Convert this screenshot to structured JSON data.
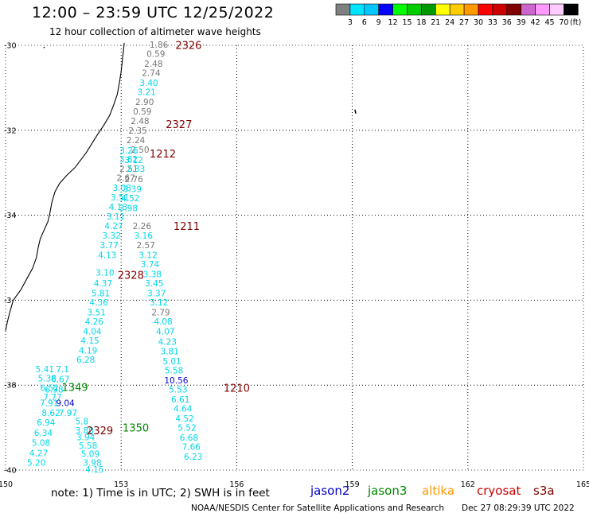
{
  "header": {
    "title": "12:00 – 23:59 UTC 12/25/2022",
    "subtitle": "12 hour collection of altimeter wave heights"
  },
  "colorbar": {
    "unit": "(ft)",
    "bins": [
      {
        "color": "#808080",
        "label": "3"
      },
      {
        "color": "#00e5ff",
        "label": "6"
      },
      {
        "color": "#00c8ff",
        "label": "9"
      },
      {
        "color": "#0000ff",
        "label": "12"
      },
      {
        "color": "#00ff00",
        "label": "15"
      },
      {
        "color": "#00cc00",
        "label": "18"
      },
      {
        "color": "#009a00",
        "label": "21"
      },
      {
        "color": "#ffff00",
        "label": "24"
      },
      {
        "color": "#ffcc00",
        "label": "27"
      },
      {
        "color": "#ff9900",
        "label": "30"
      },
      {
        "color": "#ff0000",
        "label": "33"
      },
      {
        "color": "#cc0000",
        "label": "36"
      },
      {
        "color": "#800000",
        "label": "39"
      },
      {
        "color": "#cc66cc",
        "label": "42"
      },
      {
        "color": "#ff99ff",
        "label": "45"
      },
      {
        "color": "#ffccff",
        "label": "70"
      },
      {
        "color": "#000000",
        "label": ""
      }
    ]
  },
  "axes": {
    "lon": [
      150,
      153,
      156,
      159,
      162,
      165
    ],
    "lat": [
      -30,
      -32,
      -34,
      -36,
      -38,
      -40
    ],
    "lat_labels": [
      "-30",
      "-32",
      "-34",
      "-3 ",
      "-38",
      "-40"
    ]
  },
  "colors": {
    "gray": "#777777",
    "cyan": "#00d8e8",
    "blue": "#0000cc",
    "green": "#008800",
    "pass": "#800000"
  },
  "passes": [
    {
      "label": "2326",
      "lon": 154.75,
      "lat": -29.99,
      "color": "pass"
    },
    {
      "label": "2327",
      "lon": 154.5,
      "lat": -31.85,
      "color": "pass"
    },
    {
      "label": "1212",
      "lon": 154.08,
      "lat": -32.55,
      "color": "pass"
    },
    {
      "label": "1211",
      "lon": 154.7,
      "lat": -34.25,
      "color": "pass"
    },
    {
      "label": "2328",
      "lon": 153.25,
      "lat": -35.4,
      "color": "pass"
    },
    {
      "label": "1210",
      "lon": 156.0,
      "lat": -38.06,
      "color": "pass"
    },
    {
      "label": "1349",
      "lon": 151.8,
      "lat": -38.04,
      "color": "green"
    },
    {
      "label": "1350",
      "lon": 153.38,
      "lat": -39.0,
      "color": "green"
    },
    {
      "label": "2329",
      "lon": 152.45,
      "lat": -39.06,
      "color": "pass"
    }
  ],
  "observations": [
    {
      "v": "1.86",
      "lon": 153.98,
      "lat": -29.98,
      "c": "gray"
    },
    {
      "v": "0.59",
      "lon": 153.9,
      "lat": -30.2,
      "c": "gray"
    },
    {
      "v": "2.48",
      "lon": 153.84,
      "lat": -30.43,
      "c": "gray"
    },
    {
      "v": "2.74",
      "lon": 153.78,
      "lat": -30.65,
      "c": "gray"
    },
    {
      "v": "3.40",
      "lon": 153.72,
      "lat": -30.88,
      "c": "cyan"
    },
    {
      "v": "3.21",
      "lon": 153.66,
      "lat": -31.1,
      "c": "cyan"
    },
    {
      "v": "2.90",
      "lon": 153.61,
      "lat": -31.33,
      "c": "gray"
    },
    {
      "v": "0.59",
      "lon": 153.55,
      "lat": -31.55,
      "c": "gray"
    },
    {
      "v": "2.48",
      "lon": 153.49,
      "lat": -31.78,
      "c": "gray"
    },
    {
      "v": "2.35",
      "lon": 153.43,
      "lat": -32.0,
      "c": "gray"
    },
    {
      "v": "2.24",
      "lon": 153.38,
      "lat": -32.23,
      "c": "gray"
    },
    {
      "v": "2.50",
      "lon": 153.49,
      "lat": -32.45,
      "c": "gray"
    },
    {
      "v": "3.26",
      "lon": 153.2,
      "lat": -32.47,
      "c": "cyan"
    },
    {
      "v": "3.82",
      "lon": 153.19,
      "lat": -32.68,
      "c": "cyan"
    },
    {
      "v": "3.12",
      "lon": 153.33,
      "lat": -32.7,
      "c": "cyan"
    },
    {
      "v": "2.51",
      "lon": 153.2,
      "lat": -32.9,
      "c": "gray"
    },
    {
      "v": "2.33",
      "lon": 153.38,
      "lat": -32.9,
      "c": "cyan"
    },
    {
      "v": "2.67",
      "lon": 153.12,
      "lat": -33.12,
      "c": "gray"
    },
    {
      "v": "2.76",
      "lon": 153.33,
      "lat": -33.15,
      "c": "gray"
    },
    {
      "v": "3.08",
      "lon": 153.02,
      "lat": -33.35,
      "c": "cyan"
    },
    {
      "v": "3.39",
      "lon": 153.29,
      "lat": -33.38,
      "c": "cyan"
    },
    {
      "v": "3.51",
      "lon": 152.97,
      "lat": -33.58,
      "c": "cyan"
    },
    {
      "v": "4.52",
      "lon": 153.24,
      "lat": -33.6,
      "c": "cyan"
    },
    {
      "v": "4.13",
      "lon": 152.92,
      "lat": -33.8,
      "c": "cyan"
    },
    {
      "v": "3.98",
      "lon": 153.19,
      "lat": -33.83,
      "c": "cyan"
    },
    {
      "v": "3.11",
      "lon": 152.86,
      "lat": -34.03,
      "c": "cyan"
    },
    {
      "v": "2.26",
      "lon": 153.54,
      "lat": -34.25,
      "c": "gray"
    },
    {
      "v": "4.27",
      "lon": 152.81,
      "lat": -34.25,
      "c": "cyan"
    },
    {
      "v": "3.16",
      "lon": 153.58,
      "lat": -34.48,
      "c": "cyan"
    },
    {
      "v": "3.32",
      "lon": 152.75,
      "lat": -34.48,
      "c": "cyan"
    },
    {
      "v": "2.57",
      "lon": 153.64,
      "lat": -34.7,
      "c": "gray"
    },
    {
      "v": "3.77",
      "lon": 152.69,
      "lat": -34.7,
      "c": "cyan"
    },
    {
      "v": "3.12",
      "lon": 153.7,
      "lat": -34.93,
      "c": "cyan"
    },
    {
      "v": "4.13",
      "lon": 152.64,
      "lat": -34.93,
      "c": "cyan"
    },
    {
      "v": "3.74",
      "lon": 153.75,
      "lat": -35.15,
      "c": "cyan"
    },
    {
      "v": "3.10",
      "lon": 152.58,
      "lat": -35.35,
      "c": "cyan"
    },
    {
      "v": "3.38",
      "lon": 153.81,
      "lat": -35.38,
      "c": "cyan"
    },
    {
      "v": "4.37",
      "lon": 152.53,
      "lat": -35.6,
      "c": "cyan"
    },
    {
      "v": "3.45",
      "lon": 153.86,
      "lat": -35.6,
      "c": "cyan"
    },
    {
      "v": "5.81",
      "lon": 152.47,
      "lat": -35.83,
      "c": "cyan"
    },
    {
      "v": "3.37",
      "lon": 153.92,
      "lat": -35.83,
      "c": "cyan"
    },
    {
      "v": "4.36",
      "lon": 152.42,
      "lat": -36.05,
      "c": "cyan"
    },
    {
      "v": "3.12",
      "lon": 153.98,
      "lat": -36.05,
      "c": "cyan"
    },
    {
      "v": "3.51",
      "lon": 152.36,
      "lat": -36.28,
      "c": "cyan"
    },
    {
      "v": "2.79",
      "lon": 154.03,
      "lat": -36.28,
      "c": "gray"
    },
    {
      "v": "4.26",
      "lon": 152.3,
      "lat": -36.5,
      "c": "cyan"
    },
    {
      "v": "4.08",
      "lon": 154.09,
      "lat": -36.5,
      "c": "cyan"
    },
    {
      "v": "4.04",
      "lon": 152.25,
      "lat": -36.73,
      "c": "cyan"
    },
    {
      "v": "4.07",
      "lon": 154.15,
      "lat": -36.73,
      "c": "cyan"
    },
    {
      "v": "4.15",
      "lon": 152.19,
      "lat": -36.95,
      "c": "cyan"
    },
    {
      "v": "4.23",
      "lon": 154.2,
      "lat": -36.98,
      "c": "cyan"
    },
    {
      "v": "4.19",
      "lon": 152.14,
      "lat": -37.18,
      "c": "cyan"
    },
    {
      "v": "3.81",
      "lon": 154.26,
      "lat": -37.2,
      "c": "cyan"
    },
    {
      "v": "6.28",
      "lon": 152.08,
      "lat": -37.4,
      "c": "cyan"
    },
    {
      "v": "5.01",
      "lon": 154.32,
      "lat": -37.43,
      "c": "cyan"
    },
    {
      "v": "5.41",
      "lon": 151.02,
      "lat": -37.62,
      "c": "cyan"
    },
    {
      "v": "7.1",
      "lon": 151.48,
      "lat": -37.62,
      "c": "cyan"
    },
    {
      "v": "5.58",
      "lon": 154.37,
      "lat": -37.65,
      "c": "cyan"
    },
    {
      "v": "5.38",
      "lon": 151.08,
      "lat": -37.84,
      "c": "cyan"
    },
    {
      "v": "6.67",
      "lon": 151.42,
      "lat": -37.86,
      "c": "cyan"
    },
    {
      "v": "10.56",
      "lon": 154.43,
      "lat": -37.88,
      "c": "blue"
    },
    {
      "v": "6.52",
      "lon": 151.14,
      "lat": -38.06,
      "c": "cyan"
    },
    {
      "v": "6.98",
      "lon": 151.26,
      "lat": -38.1,
      "c": "cyan"
    },
    {
      "v": "5.53",
      "lon": 154.48,
      "lat": -38.1,
      "c": "cyan"
    },
    {
      "v": "7.77",
      "lon": 151.22,
      "lat": -38.28,
      "c": "cyan"
    },
    {
      "v": "7.91",
      "lon": 151.13,
      "lat": -38.42,
      "c": "cyan"
    },
    {
      "v": "9.04",
      "lon": 151.55,
      "lat": -38.42,
      "c": "blue"
    },
    {
      "v": "6.61",
      "lon": 154.54,
      "lat": -38.33,
      "c": "cyan"
    },
    {
      "v": "8.62",
      "lon": 151.18,
      "lat": -38.65,
      "c": "cyan"
    },
    {
      "v": "7.97",
      "lon": 151.62,
      "lat": -38.65,
      "c": "cyan"
    },
    {
      "v": "4.64",
      "lon": 154.6,
      "lat": -38.55,
      "c": "cyan"
    },
    {
      "v": "5.8",
      "lon": 151.98,
      "lat": -38.85,
      "c": "cyan"
    },
    {
      "v": "6.94",
      "lon": 151.05,
      "lat": -38.88,
      "c": "cyan"
    },
    {
      "v": "4.52",
      "lon": 154.65,
      "lat": -38.78,
      "c": "cyan"
    },
    {
      "v": "3.80",
      "lon": 152.05,
      "lat": -39.06,
      "c": "cyan"
    },
    {
      "v": "6.34",
      "lon": 150.98,
      "lat": -39.12,
      "c": "cyan"
    },
    {
      "v": "5.52",
      "lon": 154.71,
      "lat": -39.0,
      "c": "cyan"
    },
    {
      "v": "3.94",
      "lon": 152.08,
      "lat": -39.22,
      "c": "cyan"
    },
    {
      "v": "5.08",
      "lon": 150.92,
      "lat": -39.35,
      "c": "cyan"
    },
    {
      "v": "5.58",
      "lon": 152.14,
      "lat": -39.42,
      "c": "cyan"
    },
    {
      "v": "6.68",
      "lon": 154.76,
      "lat": -39.23,
      "c": "cyan"
    },
    {
      "v": "4.27",
      "lon": 150.86,
      "lat": -39.6,
      "c": "cyan"
    },
    {
      "v": "5.09",
      "lon": 152.2,
      "lat": -39.62,
      "c": "cyan"
    },
    {
      "v": "7.66",
      "lon": 154.82,
      "lat": -39.45,
      "c": "cyan"
    },
    {
      "v": "5.20",
      "lon": 150.8,
      "lat": -39.82,
      "c": "cyan"
    },
    {
      "v": "3.98",
      "lon": 152.25,
      "lat": -39.82,
      "c": "cyan"
    },
    {
      "v": "6.23",
      "lon": 154.87,
      "lat": -39.68,
      "c": "cyan"
    },
    {
      "v": "4.15",
      "lon": 152.31,
      "lat": -39.98,
      "c": "cyan"
    }
  ],
  "coastline": [
    [
      153.08,
      -29.94
    ],
    [
      153.06,
      -30.12
    ],
    [
      153.03,
      -30.35
    ],
    [
      153.0,
      -30.62
    ],
    [
      152.95,
      -30.9
    ],
    [
      152.9,
      -31.15
    ],
    [
      152.8,
      -31.42
    ],
    [
      152.7,
      -31.65
    ],
    [
      152.55,
      -31.88
    ],
    [
      152.4,
      -32.08
    ],
    [
      152.25,
      -32.3
    ],
    [
      152.1,
      -32.52
    ],
    [
      151.95,
      -32.7
    ],
    [
      151.8,
      -32.88
    ],
    [
      151.6,
      -33.05
    ],
    [
      151.4,
      -33.25
    ],
    [
      151.28,
      -33.45
    ],
    [
      151.2,
      -33.7
    ],
    [
      151.15,
      -33.95
    ],
    [
      151.1,
      -34.15
    ],
    [
      151.0,
      -34.35
    ],
    [
      150.9,
      -34.55
    ],
    [
      150.85,
      -34.75
    ],
    [
      150.8,
      -35.0
    ],
    [
      150.7,
      -35.25
    ],
    [
      150.55,
      -35.5
    ],
    [
      150.4,
      -35.75
    ],
    [
      150.2,
      -36.0
    ],
    [
      150.12,
      -36.25
    ],
    [
      150.05,
      -36.5
    ],
    [
      150.0,
      -36.72
    ]
  ],
  "island": {
    "lon": 159.07,
    "lat": -31.55
  },
  "dot": {
    "lon": 151.0,
    "lat": -30.05
  },
  "footer": {
    "note": "note: 1) Time is in UTC; 2) SWH is in feet",
    "credit": "NOAA/NESDIS Center for Satellite Applications and Research",
    "stamp": "Dec 27 08:29:39 UTC 2022"
  },
  "satellites": [
    {
      "name": "jason2",
      "color": "#0000cc"
    },
    {
      "name": "jason3",
      "color": "#008800"
    },
    {
      "name": "altika",
      "color": "#ff9900"
    },
    {
      "name": "cryosat",
      "color": "#cc0000"
    },
    {
      "name": "s3a",
      "color": "#800000"
    }
  ]
}
